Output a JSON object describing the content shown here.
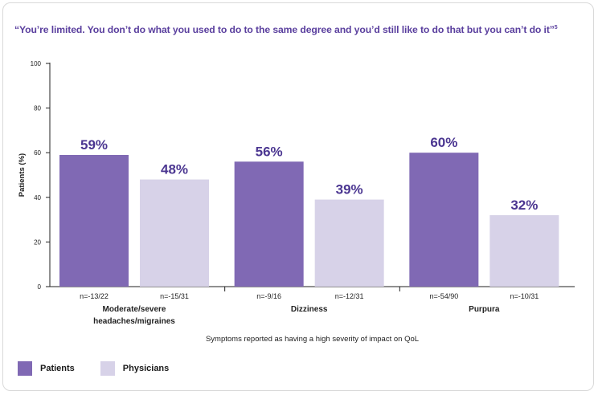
{
  "title": "“You’re limited. You don’t do what you used to do to the same degree and you’d still like to do that but you can’t do it”",
  "title_ref": "5",
  "colors": {
    "patients": "#8069b4",
    "physicians": "#d7d2e8",
    "title": "#5a3f9e"
  },
  "chart_data": {
    "type": "bar",
    "title": "“You’re limited. You don’t do what you used to do to the same degree and you’d still like to do that but you can’t do it”",
    "xlabel": "Symptoms reported as having a high severity of impact on QoL",
    "ylabel": "Patients (%)",
    "ylim": [
      0,
      100
    ],
    "yticks": [
      0,
      20,
      40,
      60,
      80,
      100
    ],
    "categories": [
      [
        "Moderate/severe",
        "headaches/migraines"
      ],
      [
        "Dizziness"
      ],
      [
        "Purpura"
      ]
    ],
    "series": [
      {
        "name": "Patients",
        "values": [
          59,
          56,
          60
        ],
        "labels": [
          "59%",
          "56%",
          "60%"
        ],
        "n": [
          "n=-13/22",
          "n=-9/16",
          "n=-54/90"
        ]
      },
      {
        "name": "Physicians",
        "values": [
          48,
          39,
          32
        ],
        "labels": [
          "48%",
          "39%",
          "32%"
        ],
        "n": [
          "n=-15/31",
          "n=-12/31",
          "n=-10/31"
        ]
      }
    ],
    "legend_position": "bottom-left",
    "grid": false
  }
}
